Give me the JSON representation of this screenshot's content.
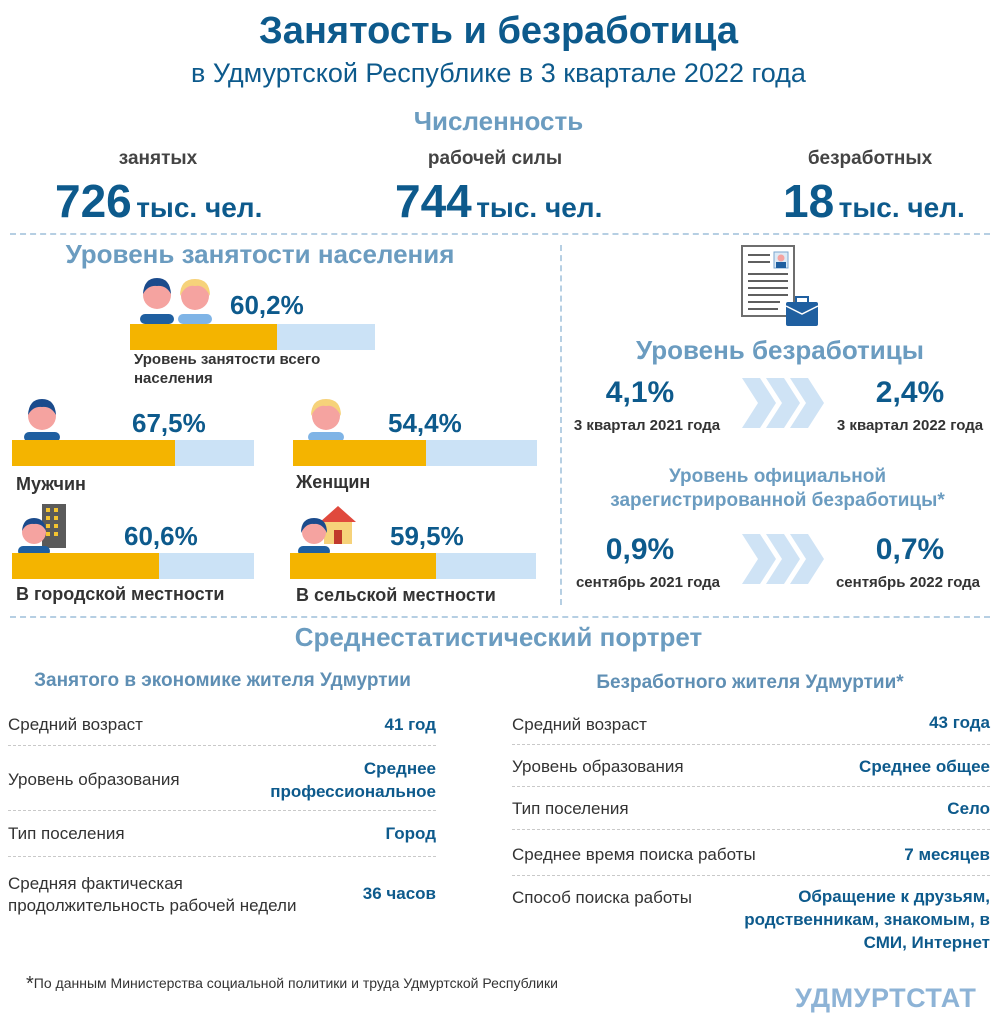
{
  "header": {
    "title": "Занятость и безработица",
    "subtitle": "в Удмуртской Республике в 3 квартале 2022 года"
  },
  "headcount": {
    "title": "Численность",
    "items": [
      {
        "label": "занятых",
        "value": "726",
        "unit": "тыс. чел."
      },
      {
        "label": "рабочей силы",
        "value": "744",
        "unit": "тыс. чел."
      },
      {
        "label": "безработных",
        "value": "18",
        "unit": "тыс. чел."
      }
    ]
  },
  "employment_rate": {
    "title": "Уровень занятости населения",
    "total": {
      "value": "60,2%",
      "label": "Уровень занятости всего населения",
      "fraction": 0.602
    },
    "men": {
      "value": "67,5%",
      "label": "Мужчин",
      "fraction": 0.675
    },
    "women": {
      "value": "54,4%",
      "label": "Женщин",
      "fraction": 0.544
    },
    "urban": {
      "value": "60,6%",
      "label": "В городской местности",
      "fraction": 0.606
    },
    "rural": {
      "value": "59,5%",
      "label": "В сельской местности",
      "fraction": 0.595
    }
  },
  "unemployment": {
    "title": "Уровень безработицы",
    "prev_value": "4,1%",
    "prev_period": "3 квартал  2021 года",
    "curr_value": "2,4%",
    "curr_period": "3 квартал  2022 года",
    "registered_title": "Уровень  официальной зарегистрированной  безработицы*",
    "reg_prev_value": "0,9%",
    "reg_prev_period": "сентябрь 2021 года",
    "reg_curr_value": "0,7%",
    "reg_curr_period": "сентябрь 2022 года"
  },
  "portrait": {
    "title": "Среднестатистический портрет",
    "employed": {
      "title": "Занятого в экономике жителя Удмуртии",
      "rows": [
        {
          "label": "Средний возраст",
          "value": "41 год"
        },
        {
          "label": "Уровень образования",
          "value": "Среднее профессиональное"
        },
        {
          "label": "Тип поселения",
          "value": "Город"
        },
        {
          "label": "Средняя фактическая продолжительность рабочей недели",
          "value": "36 часов"
        }
      ]
    },
    "unemployed": {
      "title": "Безработного  жителя Удмуртии*",
      "rows": [
        {
          "label": "Средний возраст",
          "value": "43 года"
        },
        {
          "label": "Уровень образования",
          "value": "Среднее общее"
        },
        {
          "label": "Тип поселения",
          "value": "Село"
        },
        {
          "label": "Среднее время поиска работы",
          "value": "7 месяцев"
        },
        {
          "label": "Способ поиска работы",
          "value": "Обращение к друзьям, родственникам, знакомым, в СМИ, Интернет"
        }
      ]
    }
  },
  "footnote": {
    "mark": "*",
    "text": "По данным Министерства социальной политики и труда Удмуртской Республики"
  },
  "brand": "УДМУРТСТАТ",
  "colors": {
    "primary": "#0d5a8c",
    "section": "#6b9cc0",
    "bar_fill": "#f4b400",
    "bar_bg": "#cbe2f6",
    "chevron": "#cfe3f5"
  },
  "icons": [
    "couple-icon",
    "man-icon",
    "woman-icon",
    "city-man-icon",
    "village-woman-icon",
    "resume-briefcase-icon",
    "chevron-arrows-icon"
  ]
}
